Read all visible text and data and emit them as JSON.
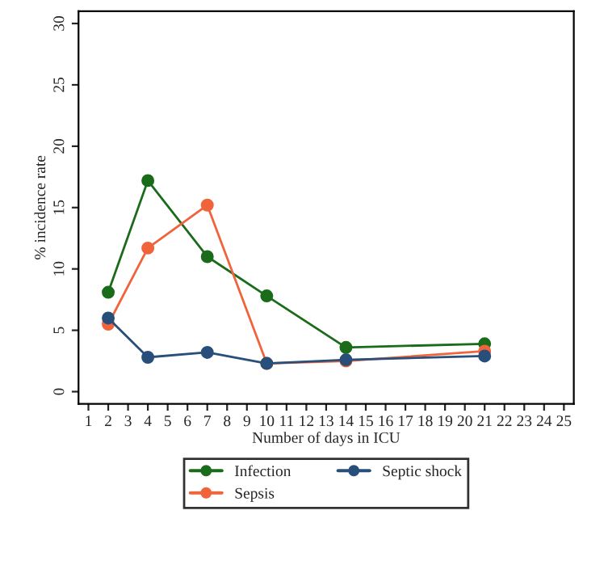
{
  "chart_data": {
    "type": "line",
    "xlabel": "Number of days in ICU",
    "ylabel": "% incidence rate",
    "x": [
      2,
      4,
      7,
      10,
      14,
      21
    ],
    "series": [
      {
        "name": "Infection",
        "color": "#1a6b1a",
        "values": [
          8.1,
          17.2,
          11.0,
          7.8,
          3.6,
          3.9
        ]
      },
      {
        "name": "Sepsis",
        "color": "#f0643c",
        "values": [
          5.5,
          11.7,
          15.2,
          2.3,
          2.5,
          3.3
        ]
      },
      {
        "name": "Septic shock",
        "color": "#284f7a",
        "values": [
          6.0,
          2.8,
          3.2,
          2.3,
          2.6,
          2.9
        ]
      }
    ],
    "xlim": [
      0.5,
      25.5
    ],
    "xticks": [
      1,
      2,
      3,
      4,
      5,
      6,
      7,
      8,
      9,
      10,
      11,
      12,
      13,
      14,
      15,
      16,
      17,
      18,
      19,
      20,
      21,
      22,
      23,
      24,
      25
    ],
    "ylim": [
      -1,
      31
    ],
    "yticks": [
      0,
      5,
      10,
      15,
      20,
      25,
      30
    ],
    "marker": "circle",
    "line_style": "solid",
    "grid": false,
    "legend": "bottom"
  }
}
